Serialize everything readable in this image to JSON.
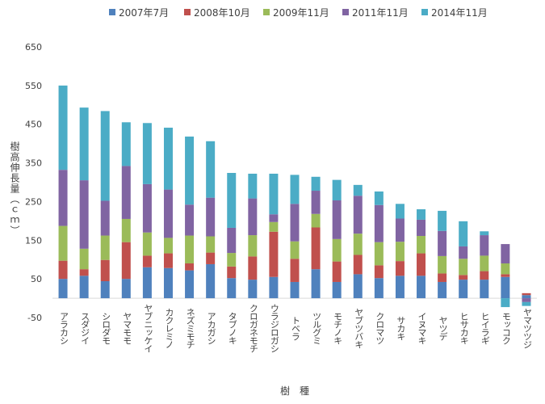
{
  "chart_data": {
    "type": "bar",
    "stacked": true,
    "title": "",
    "xlabel": "樹　種",
    "ylabel": "樹高伸長量（ｃｍ）",
    "ylim": [
      -50,
      650
    ],
    "yticks": [
      -50,
      50,
      150,
      250,
      350,
      450,
      550,
      650
    ],
    "grid": false,
    "legend_position": "top",
    "categories": [
      "アラカシ",
      "スダジイ",
      "シロダモ",
      "ヤマモモ",
      "ヤブニッケイ",
      "カクレミノ",
      "ネズミモチ",
      "アカガシ",
      "タブノキ",
      "クロガネモチ",
      "ウラジロガシ",
      "トベラ",
      "ツルグミ",
      "モチノキ",
      "ヤブツバキ",
      "クロマツ",
      "サカキ",
      "イヌマキ",
      "ヤツデ",
      "ヒサカキ",
      "ヒイラギ",
      "モッコク",
      "ヤマツツジ"
    ],
    "series": [
      {
        "name": "2007年7月",
        "color": "#4f81bd",
        "values": [
          50,
          58,
          44,
          50,
          80,
          78,
          72,
          88,
          52,
          48,
          55,
          42,
          75,
          42,
          62,
          52,
          58,
          58,
          42,
          48,
          48,
          55,
          8
        ]
      },
      {
        "name": "2008年10月",
        "color": "#c0504d",
        "values": [
          47,
          17,
          55,
          95,
          30,
          38,
          18,
          30,
          30,
          60,
          117,
          60,
          108,
          53,
          50,
          33,
          38,
          58,
          22,
          12,
          22,
          7,
          5
        ]
      },
      {
        "name": "2009年11月",
        "color": "#9bbb59",
        "values": [
          90,
          53,
          63,
          60,
          60,
          40,
          72,
          42,
          35,
          55,
          25,
          45,
          35,
          58,
          55,
          60,
          50,
          45,
          45,
          42,
          40,
          28,
          0
        ]
      },
      {
        "name": "2011年11月",
        "color": "#8064a2",
        "values": [
          145,
          177,
          90,
          137,
          125,
          125,
          80,
          100,
          65,
          95,
          20,
          97,
          60,
          100,
          98,
          96,
          60,
          42,
          65,
          32,
          53,
          50,
          -10
        ]
      },
      {
        "name": "2014年11月",
        "color": "#4bacc6",
        "values": [
          218,
          188,
          232,
          113,
          158,
          160,
          176,
          146,
          142,
          64,
          105,
          75,
          36,
          53,
          28,
          35,
          38,
          27,
          52,
          65,
          10,
          -23,
          -10
        ]
      }
    ]
  }
}
